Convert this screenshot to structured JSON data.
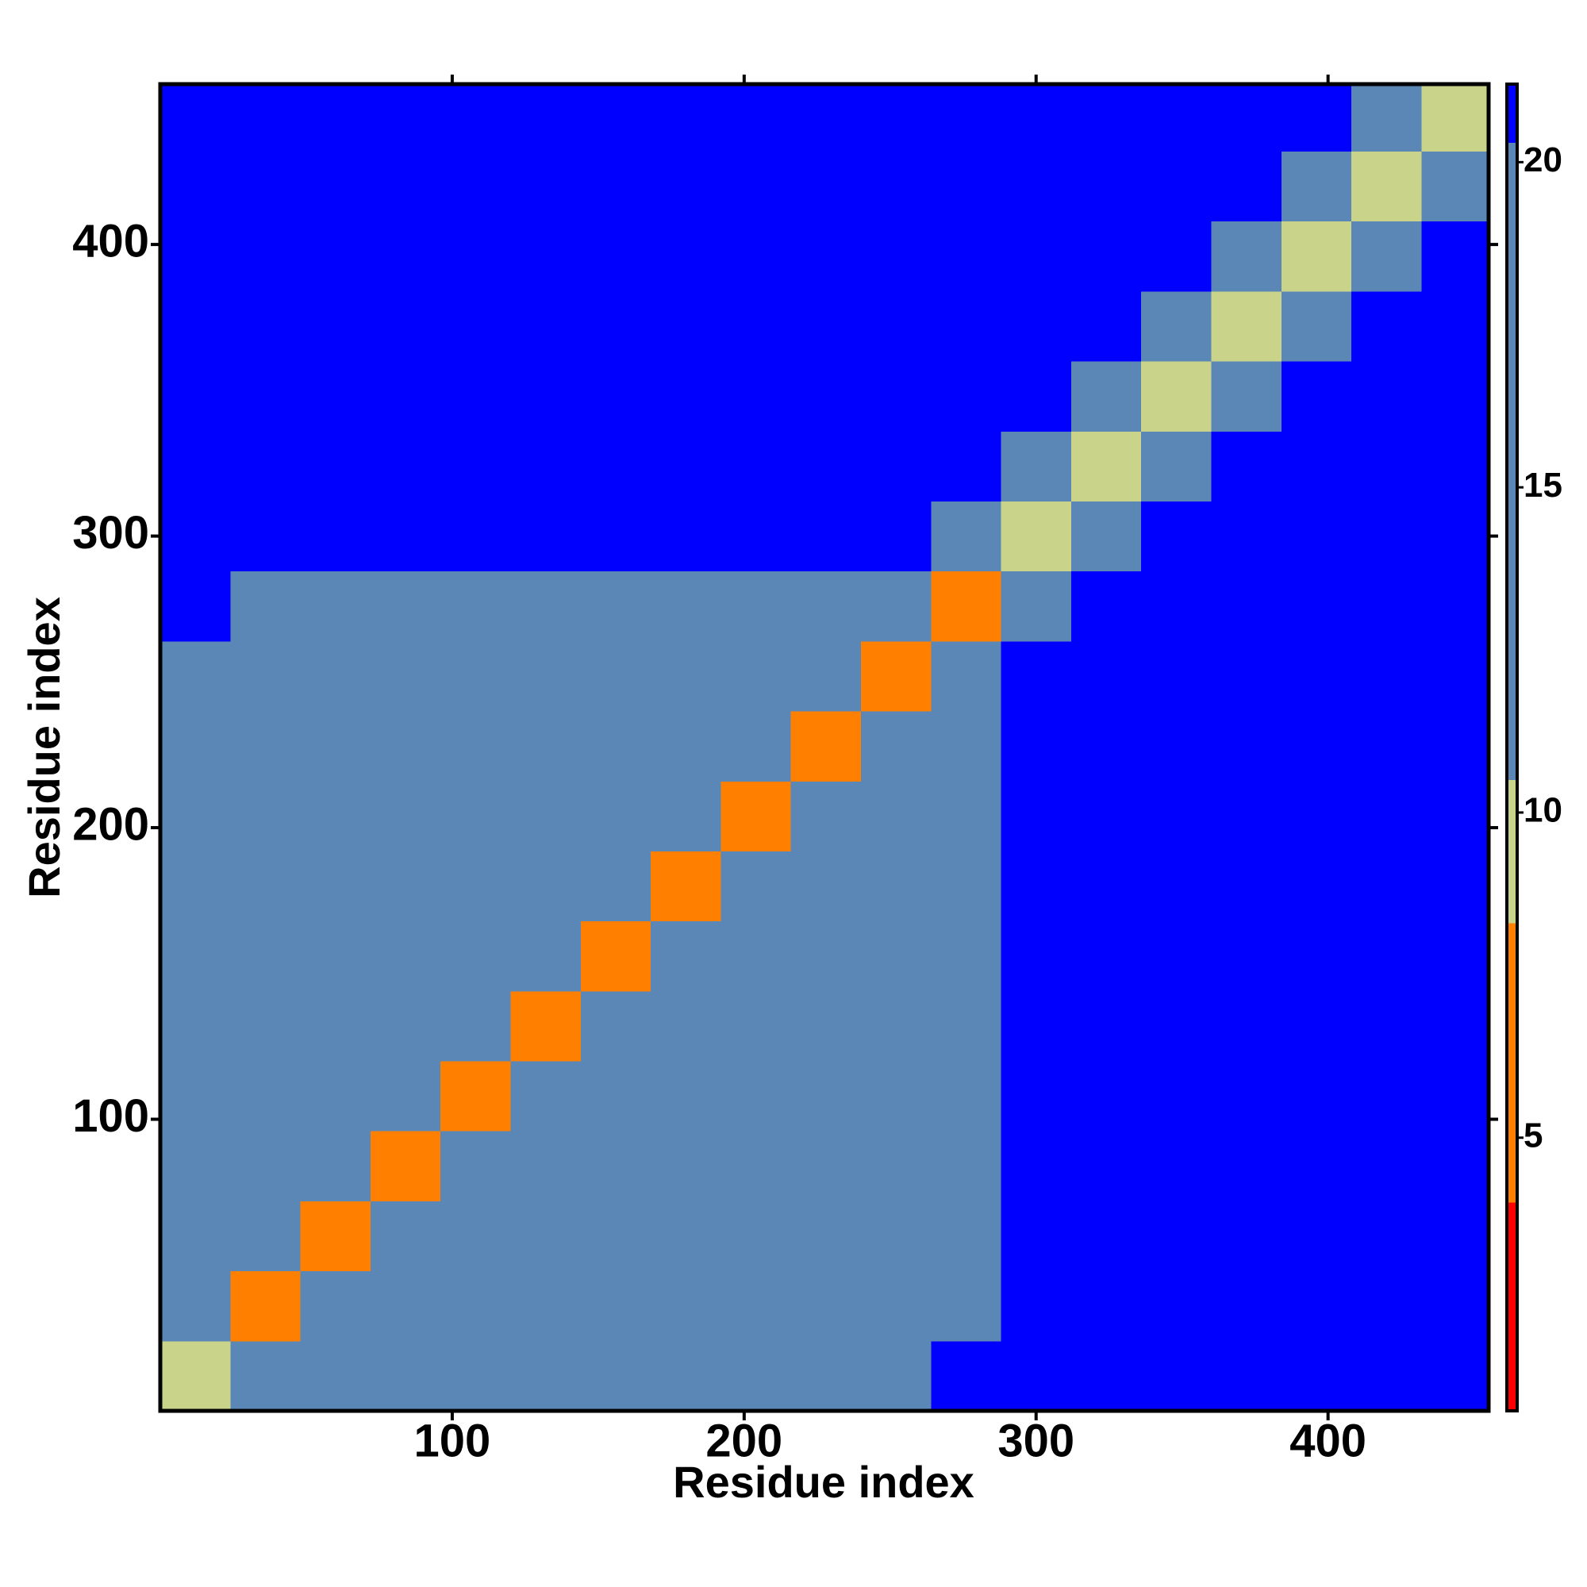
{
  "chart_data": {
    "type": "heatmap",
    "xlabel": "Residue index",
    "ylabel": "Residue index",
    "xlim": [
      0,
      455
    ],
    "ylim": [
      0,
      455
    ],
    "xticks": [
      100,
      200,
      300,
      400
    ],
    "yticks": [
      100,
      200,
      300,
      400
    ],
    "bins": [
      0,
      24,
      48,
      72,
      96,
      120,
      144,
      168,
      192,
      216,
      240,
      264,
      288,
      312,
      336,
      360,
      384,
      408,
      432,
      455
    ],
    "clim": [
      0.8,
      21.2
    ],
    "cticks": [
      5,
      10,
      15,
      20
    ],
    "color_breaks": [
      4,
      8.3,
      10.5,
      20.3
    ],
    "colors": [
      "#ff0000",
      "#ff8000",
      "#c9d48a",
      "#5b87b6",
      "#0000ff"
    ],
    "z": [
      [
        9,
        12,
        19,
        19,
        19,
        19,
        20,
        20,
        20,
        20,
        20,
        21,
        21,
        21,
        21,
        21,
        21,
        21,
        21
      ],
      [
        12,
        7,
        11,
        14,
        14,
        14,
        16,
        16,
        16,
        16,
        16,
        17,
        21,
        21,
        21,
        21,
        21,
        21,
        21
      ],
      [
        19,
        11,
        7,
        11,
        14,
        14,
        16,
        16,
        16,
        16,
        16,
        17,
        21,
        21,
        21,
        21,
        21,
        21,
        21
      ],
      [
        19,
        14,
        11,
        7,
        11,
        14,
        16,
        16,
        16,
        16,
        16,
        17,
        21,
        21,
        21,
        21,
        21,
        21,
        21
      ],
      [
        19,
        14,
        14,
        11,
        7,
        11,
        16,
        16,
        16,
        16,
        16,
        17,
        21,
        21,
        21,
        21,
        21,
        21,
        21
      ],
      [
        19,
        14,
        14,
        14,
        11,
        7,
        11,
        16,
        16,
        16,
        16,
        17,
        21,
        21,
        21,
        21,
        21,
        21,
        21
      ],
      [
        20,
        16,
        16,
        16,
        16,
        11,
        7,
        11,
        14,
        14,
        14,
        17,
        21,
        21,
        21,
        21,
        21,
        21,
        21
      ],
      [
        20,
        16,
        16,
        16,
        16,
        16,
        11,
        7,
        11,
        14,
        14,
        17,
        21,
        21,
        21,
        21,
        21,
        21,
        21
      ],
      [
        20,
        16,
        16,
        16,
        16,
        16,
        14,
        11,
        7,
        11,
        14,
        17,
        21,
        21,
        21,
        21,
        21,
        21,
        21
      ],
      [
        20,
        16,
        16,
        16,
        16,
        16,
        14,
        14,
        11,
        7,
        11,
        17,
        21,
        21,
        21,
        21,
        21,
        21,
        21
      ],
      [
        20,
        16,
        16,
        16,
        16,
        16,
        14,
        14,
        14,
        11,
        7,
        11,
        21,
        21,
        21,
        21,
        21,
        21,
        21
      ],
      [
        21,
        17,
        17,
        17,
        17,
        17,
        17,
        17,
        17,
        17,
        11,
        6,
        12,
        21,
        21,
        21,
        21,
        21,
        21
      ],
      [
        21,
        21,
        21,
        21,
        21,
        21,
        21,
        21,
        21,
        21,
        21,
        12,
        9,
        20,
        21,
        21,
        21,
        21,
        21
      ],
      [
        21,
        21,
        21,
        21,
        21,
        21,
        21,
        21,
        21,
        21,
        21,
        21,
        20,
        9,
        20,
        21,
        21,
        21,
        21
      ],
      [
        21,
        21,
        21,
        21,
        21,
        21,
        21,
        21,
        21,
        21,
        21,
        21,
        21,
        20,
        9,
        20,
        21,
        21,
        21
      ],
      [
        21,
        21,
        21,
        21,
        21,
        21,
        21,
        21,
        21,
        21,
        21,
        21,
        21,
        21,
        20,
        9,
        20,
        21,
        21
      ],
      [
        21,
        21,
        21,
        21,
        21,
        21,
        21,
        21,
        21,
        21,
        21,
        21,
        21,
        21,
        21,
        20,
        9,
        20,
        21
      ],
      [
        21,
        21,
        21,
        21,
        21,
        21,
        21,
        21,
        21,
        21,
        21,
        21,
        21,
        21,
        21,
        21,
        20,
        9,
        20
      ],
      [
        21,
        21,
        21,
        21,
        21,
        21,
        21,
        21,
        21,
        21,
        21,
        21,
        21,
        21,
        21,
        21,
        21,
        20,
        9
      ]
    ]
  }
}
